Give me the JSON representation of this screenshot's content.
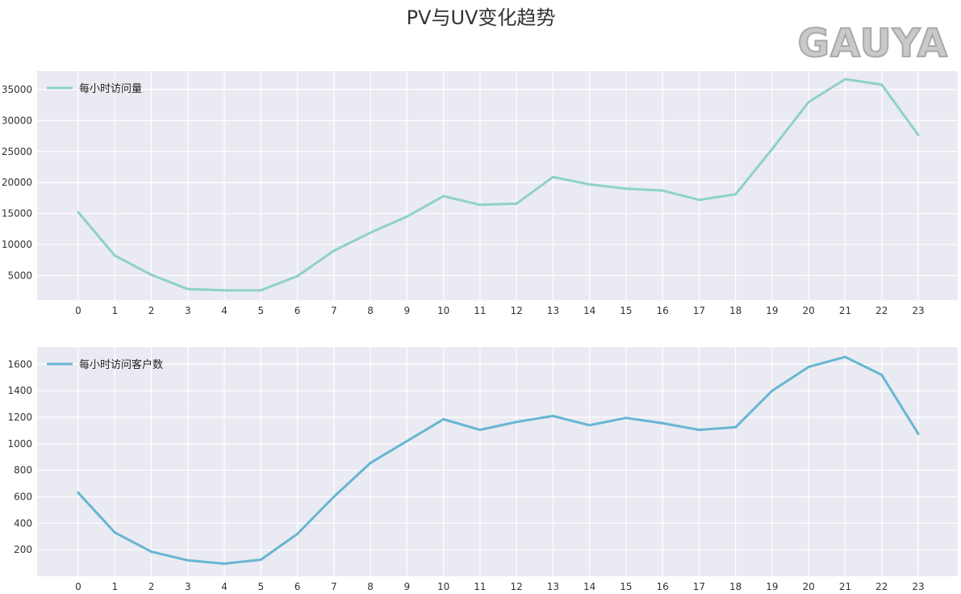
{
  "figure": {
    "title": "PV与UV变化趋势",
    "watermark": "GAUYA"
  },
  "colors": {
    "panel_bg": "#eaeaf2",
    "grid": "#ffffff",
    "pv_line": "#8fd1c7",
    "uv_line": "#67b6d2"
  },
  "chart_data": [
    {
      "type": "line",
      "x": [
        0,
        1,
        2,
        3,
        4,
        5,
        6,
        7,
        8,
        9,
        10,
        11,
        12,
        13,
        14,
        15,
        16,
        17,
        18,
        19,
        20,
        21,
        22,
        23
      ],
      "x_tick_labels": [
        "0",
        "1",
        "2",
        "3",
        "4",
        "5",
        "6",
        "7",
        "8",
        "9",
        "10",
        "11",
        "12",
        "13",
        "14",
        "15",
        "16",
        "17",
        "18",
        "19",
        "20",
        "21",
        "22",
        "23"
      ],
      "series": [
        {
          "name": "每小时访问量",
          "values": [
            15200,
            8200,
            5100,
            2800,
            2600,
            2600,
            4900,
            9000,
            11900,
            14500,
            17800,
            16400,
            16600,
            20900,
            19700,
            19000,
            18700,
            17200,
            18100,
            25400,
            33000,
            36700,
            35800,
            27700
          ]
        }
      ],
      "ylim": [
        1000,
        38000
      ],
      "y_ticks": [
        5000,
        10000,
        15000,
        20000,
        25000,
        30000,
        35000
      ],
      "y_tick_labels": [
        "5000",
        "10000",
        "15000",
        "20000",
        "25000",
        "30000",
        "35000"
      ],
      "legend": "top-left",
      "grid": true
    },
    {
      "type": "line",
      "x": [
        0,
        1,
        2,
        3,
        4,
        5,
        6,
        7,
        8,
        9,
        10,
        11,
        12,
        13,
        14,
        15,
        16,
        17,
        18,
        19,
        20,
        21,
        22,
        23
      ],
      "x_tick_labels": [
        "0",
        "1",
        "2",
        "3",
        "4",
        "5",
        "6",
        "7",
        "8",
        "9",
        "10",
        "11",
        "12",
        "13",
        "14",
        "15",
        "16",
        "17",
        "18",
        "19",
        "20",
        "21",
        "22",
        "23"
      ],
      "series": [
        {
          "name": "每小时访问客户数",
          "values": [
            630,
            330,
            185,
            120,
            95,
            125,
            320,
            600,
            855,
            1020,
            1185,
            1105,
            1165,
            1210,
            1140,
            1195,
            1155,
            1105,
            1125,
            1400,
            1580,
            1655,
            1520,
            1075
          ]
        }
      ],
      "ylim": [
        0,
        1730
      ],
      "y_ticks": [
        200,
        400,
        600,
        800,
        1000,
        1200,
        1400,
        1600
      ],
      "y_tick_labels": [
        "200",
        "400",
        "600",
        "800",
        "1000",
        "1200",
        "1400",
        "1600"
      ],
      "legend": "top-left",
      "grid": true
    }
  ]
}
